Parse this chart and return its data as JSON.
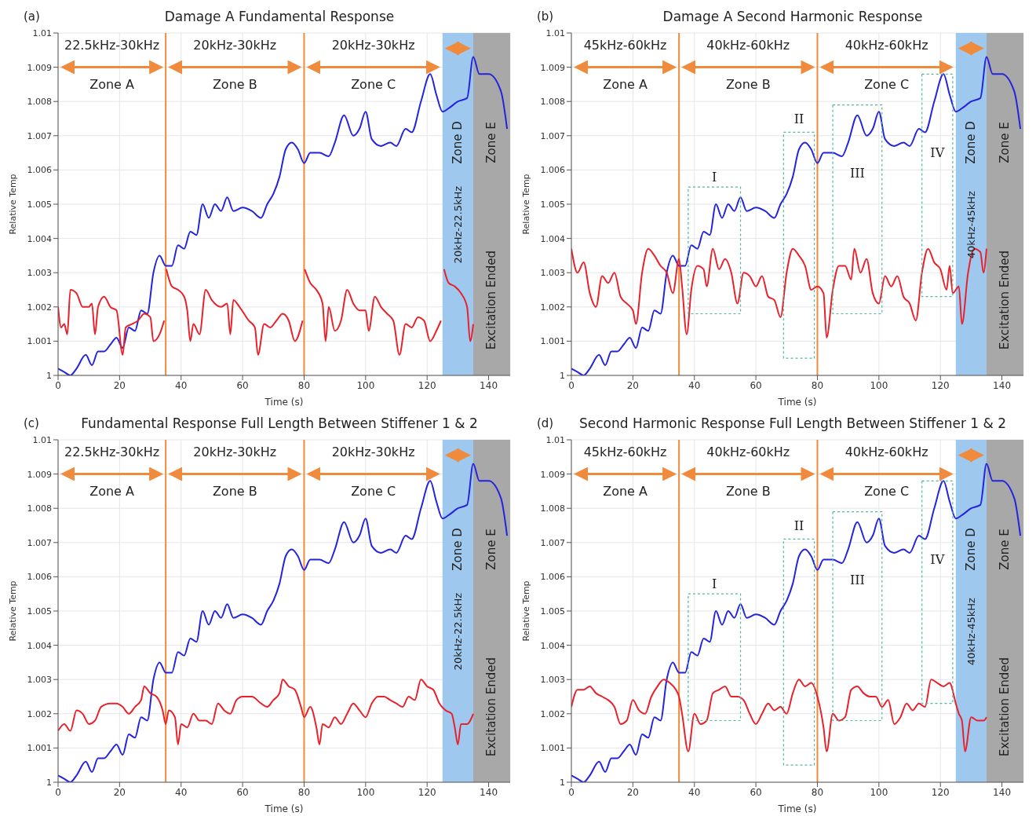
{
  "chart_data": [
    {
      "type": "line",
      "title": "Damage A Fundamental Response",
      "xlabel": "Time (s)",
      "ylabel": "Relative Temp",
      "xlim": [
        0,
        147
      ],
      "ylim": [
        1,
        1.01
      ],
      "xticks": [
        0,
        20,
        40,
        60,
        80,
        100,
        120,
        140
      ],
      "yticks": [
        1,
        1.001,
        1.002,
        1.003,
        1.004,
        1.005,
        1.006,
        1.007,
        1.008,
        1.009,
        1.01
      ],
      "grid": true,
      "line_style": "solid",
      "series": [
        {
          "color": "#2323e0",
          "x": [
            0,
            2,
            4,
            6,
            9,
            11,
            13,
            15,
            17,
            19,
            21,
            23,
            25,
            27,
            29,
            31,
            33,
            35,
            37,
            39,
            41,
            43,
            45,
            47,
            49,
            51,
            53,
            55,
            57,
            60,
            63,
            66,
            68,
            70,
            72,
            74,
            76,
            78,
            80,
            82,
            85,
            88,
            90,
            93,
            96,
            98,
            100,
            102,
            105,
            108,
            110,
            113,
            115,
            118,
            121,
            123,
            125,
            127,
            130,
            133,
            135,
            137,
            140,
            144,
            146
          ],
          "values": [
            1.0002,
            1.0001,
            1.0,
            1.0002,
            1.0006,
            1.0003,
            1.0007,
            1.0007,
            1.0009,
            1.0011,
            1.0008,
            1.0014,
            1.0013,
            1.0019,
            1.0018,
            1.003,
            1.0035,
            1.0032,
            1.0032,
            1.0038,
            1.0037,
            1.0042,
            1.0041,
            1.005,
            1.0046,
            1.005,
            1.0048,
            1.0052,
            1.0048,
            1.0049,
            1.0048,
            1.0046,
            1.005,
            1.0053,
            1.0058,
            1.0066,
            1.0068,
            1.0066,
            1.0062,
            1.0065,
            1.0065,
            1.0064,
            1.0068,
            1.0076,
            1.007,
            1.0072,
            1.0077,
            1.0069,
            1.0067,
            1.0068,
            1.0067,
            1.0072,
            1.0071,
            1.008,
            1.0088,
            1.0082,
            1.0077,
            1.0078,
            1.008,
            1.0081,
            1.0093,
            1.0088,
            1.0088,
            1.0083,
            1.0072
          ]
        },
        {
          "color": "#e8212b",
          "x": [
            0,
            1,
            2,
            3,
            4,
            6,
            8,
            10,
            11,
            12,
            13,
            15,
            17,
            19,
            21,
            22,
            24,
            26,
            28,
            30,
            31,
            33,
            34.5,
            34.8,
            35.2,
            37,
            39,
            41,
            42,
            43,
            44,
            46,
            48,
            50,
            53,
            55,
            56,
            57,
            59,
            62,
            64,
            65,
            67,
            69,
            71,
            73,
            75,
            77,
            79.5,
            79.8,
            80.2,
            82,
            84,
            86,
            87,
            88,
            90,
            92,
            94,
            96,
            98,
            100,
            101,
            103,
            105,
            107,
            109,
            111,
            113,
            115,
            117,
            119,
            121,
            123,
            124.5,
            124.8,
            125.5,
            127,
            129,
            131,
            133,
            134,
            135
          ],
          "values": [
            1.002,
            1.0014,
            1.0015,
            1.0012,
            1.0025,
            1.0024,
            1.002,
            1.002,
            1.0021,
            1.0012,
            1.002,
            1.0023,
            1.002,
            1.0019,
            1.0006,
            1.0014,
            1.0015,
            1.0016,
            1.0018,
            1.0017,
            1.001,
            1.0012,
            1.0016,
            null,
            1.0031,
            1.0026,
            1.0025,
            1.0023,
            1.0019,
            1.001,
            1.0015,
            1.0012,
            1.0025,
            1.0022,
            1.002,
            1.0021,
            1.0012,
            1.0022,
            1.002,
            1.0016,
            1.0014,
            1.0006,
            1.0015,
            1.0014,
            1.0016,
            1.0018,
            1.0016,
            1.001,
            1.0016,
            null,
            1.0031,
            1.0027,
            1.0025,
            1.0021,
            1.001,
            1.002,
            1.0013,
            1.0016,
            1.0025,
            1.0021,
            1.0019,
            1.0019,
            1.0013,
            1.0023,
            1.002,
            1.0018,
            1.0016,
            1.0006,
            1.0015,
            1.0014,
            1.0017,
            1.0016,
            1.001,
            1.0013,
            1.0016,
            null,
            1.0031,
            1.0027,
            1.0026,
            1.0024,
            1.002,
            1.001,
            1.0015
          ]
        }
      ],
      "ref_lines": [
        {
          "axis": "x",
          "value": 35,
          "color": "#f08a3c"
        },
        {
          "axis": "x",
          "value": 80,
          "color": "#f08a3c"
        }
      ],
      "bands": [
        {
          "axis": "x",
          "from": 125,
          "to": 135,
          "label": "Zone D",
          "color": "#9ec8ee"
        },
        {
          "axis": "x",
          "from": 135,
          "to": 147,
          "label": "Zone E",
          "color": "#a8a8a8"
        }
      ],
      "annotations": [
        "(a)",
        "22.5kHz-30kHz",
        "20kHz-30kHz",
        "20kHz-30kHz",
        "Zone A",
        "Zone B",
        "Zone C",
        "20kHz-22.5kHz",
        "Excitation Ended"
      ]
    },
    {
      "type": "line",
      "title": "Damage A Second Harmonic Response",
      "xlabel": "Time (s)",
      "ylabel": "Relative Temp",
      "xlim": [
        0,
        147
      ],
      "ylim": [
        1,
        1.01
      ],
      "xticks": [
        0,
        20,
        40,
        60,
        80,
        100,
        120,
        140
      ],
      "yticks": [
        1,
        1.001,
        1.002,
        1.003,
        1.004,
        1.005,
        1.006,
        1.007,
        1.008,
        1.009,
        1.01
      ],
      "grid": true,
      "line_style": "solid",
      "series": [
        {
          "color": "#2323e0",
          "x": [
            0,
            2,
            4,
            6,
            9,
            11,
            13,
            15,
            17,
            19,
            21,
            23,
            25,
            27,
            29,
            31,
            33,
            35,
            37,
            39,
            41,
            43,
            45,
            47,
            49,
            51,
            53,
            55,
            57,
            60,
            63,
            66,
            68,
            70,
            72,
            74,
            76,
            78,
            80,
            82,
            85,
            88,
            90,
            93,
            96,
            98,
            100,
            102,
            105,
            108,
            110,
            113,
            115,
            118,
            121,
            123,
            125,
            127,
            130,
            133,
            135,
            137,
            140,
            144,
            146
          ],
          "values": [
            1.0002,
            1.0001,
            1.0,
            1.0002,
            1.0006,
            1.0003,
            1.0007,
            1.0007,
            1.0009,
            1.0011,
            1.0008,
            1.0014,
            1.0013,
            1.0019,
            1.0018,
            1.003,
            1.0035,
            1.0032,
            1.0032,
            1.0038,
            1.0037,
            1.0042,
            1.0041,
            1.005,
            1.0046,
            1.005,
            1.0048,
            1.0052,
            1.0048,
            1.0049,
            1.0048,
            1.0046,
            1.005,
            1.0053,
            1.0058,
            1.0066,
            1.0068,
            1.0066,
            1.0062,
            1.0065,
            1.0065,
            1.0064,
            1.0068,
            1.0076,
            1.007,
            1.0072,
            1.0077,
            1.0069,
            1.0067,
            1.0068,
            1.0067,
            1.0072,
            1.0071,
            1.008,
            1.0088,
            1.0082,
            1.0077,
            1.0078,
            1.008,
            1.0081,
            1.0093,
            1.0088,
            1.0088,
            1.0083,
            1.0072
          ]
        },
        {
          "color": "#e8212b",
          "x": [
            0,
            2,
            4,
            6,
            8,
            10,
            12,
            14,
            16,
            18,
            20,
            21,
            23,
            25,
            27,
            29,
            31,
            33,
            35,
            36,
            37.5,
            39,
            41,
            43,
            44,
            46,
            48,
            50,
            52,
            54,
            56,
            58,
            60,
            62,
            64,
            66,
            68,
            70,
            72,
            74,
            76,
            78,
            80,
            82,
            83,
            85,
            87,
            89,
            91,
            92,
            94,
            96,
            98,
            100,
            102,
            104,
            106,
            108,
            110,
            112,
            114,
            116,
            118,
            120,
            122,
            123,
            124,
            126,
            127,
            129,
            131,
            133,
            134,
            135
          ],
          "values": [
            1.0037,
            1.003,
            1.0033,
            1.0024,
            1.002,
            1.0029,
            1.0027,
            1.003,
            1.0023,
            1.0021,
            1.0019,
            1.0015,
            1.003,
            1.0037,
            1.0035,
            1.0032,
            1.003,
            1.0024,
            1.0034,
            1.0026,
            1.0012,
            1.0025,
            1.0032,
            1.0031,
            1.0026,
            1.0037,
            1.0031,
            1.0034,
            1.003,
            1.0021,
            1.003,
            1.0029,
            1.0026,
            1.0029,
            1.0023,
            1.0022,
            1.0017,
            1.003,
            1.0037,
            1.0035,
            1.0032,
            1.0025,
            1.0026,
            1.0024,
            1.0011,
            1.0025,
            1.0032,
            1.0032,
            1.0028,
            1.0037,
            1.003,
            1.0034,
            1.0024,
            1.0021,
            1.0029,
            1.0026,
            1.0029,
            1.0023,
            1.0021,
            1.0016,
            1.003,
            1.0037,
            1.0033,
            1.0031,
            1.0025,
            1.0032,
            1.0024,
            1.0026,
            1.0015,
            1.003,
            1.0037,
            1.0036,
            1.003,
            1.0037
          ]
        }
      ],
      "ref_lines": [
        {
          "axis": "x",
          "value": 35,
          "color": "#f08a3c"
        },
        {
          "axis": "x",
          "value": 80,
          "color": "#f08a3c"
        }
      ],
      "bands": [
        {
          "axis": "x",
          "from": 125,
          "to": 135,
          "label": "Zone D",
          "color": "#9ec8ee"
        },
        {
          "axis": "x",
          "from": 135,
          "to": 147,
          "label": "Zone E",
          "color": "#a8a8a8"
        }
      ],
      "annotations": [
        "(b)",
        "45kHz-60kHz",
        "40kHz-60kHz",
        "40kHz-60kHz",
        "Zone A",
        "Zone B",
        "Zone C",
        "40kHz-45kHz",
        "Excitation Ended",
        "I",
        "II",
        "III",
        "IV"
      ]
    },
    {
      "type": "line",
      "title": "Fundamental Response Full Length Between Stiffener 1 & 2",
      "xlabel": "Time (s)",
      "ylabel": "Relative Temp",
      "xlim": [
        0,
        147
      ],
      "ylim": [
        1,
        1.01
      ],
      "xticks": [
        0,
        20,
        40,
        60,
        80,
        100,
        120,
        140
      ],
      "yticks": [
        1,
        1.001,
        1.002,
        1.003,
        1.004,
        1.005,
        1.006,
        1.007,
        1.008,
        1.009,
        1.01
      ],
      "grid": true,
      "line_style": "solid",
      "series": [
        {
          "color": "#2323e0",
          "x": [
            0,
            2,
            4,
            6,
            9,
            11,
            13,
            15,
            17,
            19,
            21,
            23,
            25,
            27,
            29,
            31,
            33,
            35,
            37,
            39,
            41,
            43,
            45,
            47,
            49,
            51,
            53,
            55,
            57,
            60,
            63,
            66,
            68,
            70,
            72,
            74,
            76,
            78,
            80,
            82,
            85,
            88,
            90,
            93,
            96,
            98,
            100,
            102,
            105,
            108,
            110,
            113,
            115,
            118,
            121,
            123,
            125,
            127,
            130,
            133,
            135,
            137,
            140,
            144,
            146
          ],
          "values": [
            1.0002,
            1.0001,
            1.0,
            1.0002,
            1.0006,
            1.0003,
            1.0007,
            1.0007,
            1.0009,
            1.0011,
            1.0008,
            1.0014,
            1.0013,
            1.0019,
            1.0018,
            1.003,
            1.0035,
            1.0032,
            1.0032,
            1.0038,
            1.0037,
            1.0042,
            1.0041,
            1.005,
            1.0046,
            1.005,
            1.0048,
            1.0052,
            1.0048,
            1.0049,
            1.0048,
            1.0046,
            1.005,
            1.0053,
            1.0058,
            1.0066,
            1.0068,
            1.0066,
            1.0062,
            1.0065,
            1.0065,
            1.0064,
            1.0068,
            1.0076,
            1.007,
            1.0072,
            1.0077,
            1.0069,
            1.0067,
            1.0068,
            1.0067,
            1.0072,
            1.0071,
            1.008,
            1.0088,
            1.0082,
            1.0077,
            1.0078,
            1.008,
            1.0081,
            1.0093,
            1.0088,
            1.0088,
            1.0083,
            1.0072
          ]
        },
        {
          "color": "#e8212b",
          "x": [
            0,
            2,
            4,
            6,
            8,
            10,
            12,
            14,
            17,
            19,
            21,
            23,
            25,
            27,
            28,
            30,
            32,
            34,
            35,
            36,
            38,
            39,
            40,
            42,
            44,
            46,
            48,
            50,
            52,
            54,
            56,
            58,
            60,
            63,
            66,
            68,
            70,
            72,
            73,
            75,
            77,
            79,
            80,
            82,
            84,
            85,
            86,
            88,
            90,
            92,
            94,
            96,
            98,
            100,
            102,
            104,
            106,
            108,
            110,
            112,
            114,
            116,
            118,
            120,
            122,
            124,
            126,
            128,
            129,
            130,
            131,
            133,
            135
          ],
          "values": [
            1.0015,
            1.0017,
            1.0015,
            1.0021,
            1.002,
            1.0017,
            1.0018,
            1.0022,
            1.0023,
            1.0023,
            1.0022,
            1.002,
            1.0022,
            1.0024,
            1.0028,
            1.0026,
            1.0025,
            1.0021,
            1.0017,
            1.0021,
            1.0019,
            1.0011,
            1.0017,
            1.0016,
            1.002,
            1.0018,
            1.0018,
            1.0017,
            1.0023,
            1.0021,
            1.002,
            1.0024,
            1.0025,
            1.0025,
            1.0023,
            1.0022,
            1.0024,
            1.0026,
            1.003,
            1.0028,
            1.0027,
            1.0022,
            1.0019,
            1.0022,
            1.0016,
            1.0011,
            1.0017,
            1.0016,
            1.0019,
            1.0017,
            1.002,
            1.0023,
            1.0021,
            1.0019,
            1.0023,
            1.0025,
            1.0025,
            1.0024,
            1.0023,
            1.0022,
            1.0025,
            1.0024,
            1.003,
            1.0028,
            1.0027,
            1.0023,
            1.0021,
            1.002,
            1.0016,
            1.0011,
            1.0017,
            1.0017,
            1.002
          ]
        }
      ],
      "ref_lines": [
        {
          "axis": "x",
          "value": 35,
          "color": "#f08a3c"
        },
        {
          "axis": "x",
          "value": 80,
          "color": "#f08a3c"
        }
      ],
      "bands": [
        {
          "axis": "x",
          "from": 125,
          "to": 135,
          "label": "Zone D",
          "color": "#9ec8ee"
        },
        {
          "axis": "x",
          "from": 135,
          "to": 147,
          "label": "Zone E",
          "color": "#a8a8a8"
        }
      ],
      "annotations": [
        "(c)",
        "22.5kHz-30kHz",
        "20kHz-30kHz",
        "20kHz-30kHz",
        "Zone A",
        "Zone B",
        "Zone C",
        "20kHz-22.5kHz",
        "Excitation Ended"
      ]
    },
    {
      "type": "line",
      "title": "Second Harmonic Response Full Length Between Stiffener 1 & 2",
      "xlabel": "Time (s)",
      "ylabel": "Relative Temp",
      "xlim": [
        0,
        147
      ],
      "ylim": [
        1,
        1.01
      ],
      "xticks": [
        0,
        20,
        40,
        60,
        80,
        100,
        120,
        140
      ],
      "yticks": [
        1,
        1.001,
        1.002,
        1.003,
        1.004,
        1.005,
        1.006,
        1.007,
        1.008,
        1.009,
        1.01
      ],
      "grid": true,
      "line_style": "solid",
      "series": [
        {
          "color": "#2323e0",
          "x": [
            0,
            2,
            4,
            6,
            9,
            11,
            13,
            15,
            17,
            19,
            21,
            23,
            25,
            27,
            29,
            31,
            33,
            35,
            37,
            39,
            41,
            43,
            45,
            47,
            49,
            51,
            53,
            55,
            57,
            60,
            63,
            66,
            68,
            70,
            72,
            74,
            76,
            78,
            80,
            82,
            85,
            88,
            90,
            93,
            96,
            98,
            100,
            102,
            105,
            108,
            110,
            113,
            115,
            118,
            121,
            123,
            125,
            127,
            130,
            133,
            135,
            137,
            140,
            144,
            146
          ],
          "values": [
            1.0002,
            1.0001,
            1.0,
            1.0002,
            1.0006,
            1.0003,
            1.0007,
            1.0007,
            1.0009,
            1.0011,
            1.0008,
            1.0014,
            1.0013,
            1.0019,
            1.0018,
            1.003,
            1.0035,
            1.0032,
            1.0032,
            1.0038,
            1.0037,
            1.0042,
            1.0041,
            1.005,
            1.0046,
            1.005,
            1.0048,
            1.0052,
            1.0048,
            1.0049,
            1.0048,
            1.0046,
            1.005,
            1.0053,
            1.0058,
            1.0066,
            1.0068,
            1.0066,
            1.0062,
            1.0065,
            1.0065,
            1.0064,
            1.0068,
            1.0076,
            1.007,
            1.0072,
            1.0077,
            1.0069,
            1.0067,
            1.0068,
            1.0067,
            1.0072,
            1.0071,
            1.008,
            1.0088,
            1.0082,
            1.0077,
            1.0078,
            1.008,
            1.0081,
            1.0093,
            1.0088,
            1.0088,
            1.0083,
            1.0072
          ]
        },
        {
          "color": "#e8212b",
          "x": [
            0,
            2,
            4,
            6,
            8,
            10,
            12,
            14,
            16,
            18,
            20,
            22,
            24,
            26,
            28,
            30,
            32,
            34,
            35,
            36,
            38,
            40,
            42,
            44,
            46,
            48,
            50,
            52,
            54,
            56,
            58,
            60,
            62,
            64,
            66,
            68,
            70,
            72,
            74,
            76,
            78,
            80,
            82,
            83,
            85,
            87,
            89,
            91,
            93,
            95,
            97,
            99,
            101,
            103,
            105,
            107,
            109,
            111,
            113,
            115,
            117,
            119,
            121,
            123,
            125,
            126,
            127,
            128,
            130,
            132,
            134,
            135
          ],
          "values": [
            1.0022,
            1.0027,
            1.0027,
            1.0028,
            1.0026,
            1.0025,
            1.0024,
            1.0022,
            1.0017,
            1.0018,
            1.0024,
            1.0021,
            1.002,
            1.0025,
            1.0028,
            1.003,
            1.0029,
            1.0027,
            1.0025,
            1.002,
            1.0009,
            1.002,
            1.0017,
            1.0018,
            1.0026,
            1.0027,
            1.0028,
            1.0025,
            1.0025,
            1.0024,
            1.002,
            1.0017,
            1.002,
            1.0023,
            1.0021,
            1.0022,
            1.002,
            1.0026,
            1.003,
            1.0028,
            1.0029,
            1.0025,
            1.0016,
            1.0009,
            1.002,
            1.0018,
            1.0019,
            1.0027,
            1.0028,
            1.0026,
            1.0025,
            1.0025,
            1.0022,
            1.0024,
            1.0017,
            1.0019,
            1.0023,
            1.0021,
            1.0023,
            1.0022,
            1.003,
            1.0029,
            1.0028,
            1.0029,
            1.0023,
            1.002,
            1.0018,
            1.0009,
            1.0019,
            1.0018,
            1.0018,
            1.0019
          ]
        }
      ],
      "ref_lines": [
        {
          "axis": "x",
          "value": 35,
          "color": "#f08a3c"
        },
        {
          "axis": "x",
          "value": 80,
          "color": "#f08a3c"
        }
      ],
      "bands": [
        {
          "axis": "x",
          "from": 125,
          "to": 135,
          "label": "Zone D",
          "color": "#9ec8ee"
        },
        {
          "axis": "x",
          "from": 135,
          "to": 147,
          "label": "Zone E",
          "color": "#a8a8a8"
        }
      ],
      "annotations": [
        "(d)",
        "45kHz-60kHz",
        "40kHz-60kHz",
        "40kHz-60kHz",
        "Zone A",
        "Zone B",
        "Zone C",
        "40kHz-45kHz",
        "Excitation Ended",
        "I",
        "II",
        "III",
        "IV"
      ]
    }
  ]
}
